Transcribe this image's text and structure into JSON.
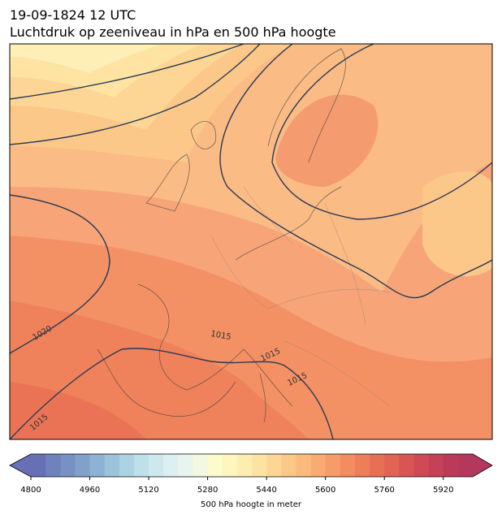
{
  "header": {
    "line1": "19-09-1824 12 UTC",
    "line2": "Luchtdruk op zeeniveau in hPa en 500 hPa hoogte"
  },
  "map": {
    "isobar_labels": [
      1020,
      1015,
      1015,
      1015,
      1015
    ]
  },
  "colorbar": {
    "label": "500 hPa hoogte in meter",
    "clim": [
      4800,
      6000
    ],
    "ticks": [
      4800,
      4960,
      5120,
      5280,
      5440,
      5600,
      5760,
      5920
    ],
    "colors": [
      "#6770b5",
      "#6f82bc",
      "#7791c4",
      "#81a1cb",
      "#8db2d3",
      "#9dc3da",
      "#acd3e3",
      "#bde0ea",
      "#cde8ef",
      "#dcf0f2",
      "#e8f5ee",
      "#f2f9e0",
      "#fbfbcc",
      "#fff6bd",
      "#feedb0",
      "#fde3a2",
      "#fdd695",
      "#fcc888",
      "#fbba7c",
      "#f9ab72",
      "#f69c68",
      "#f28d60",
      "#ee7e59",
      "#e86f55",
      "#e26253",
      "#d95553",
      "#d04a55",
      "#c64058",
      "#bb3a5a",
      "#b4385c"
    ]
  }
}
